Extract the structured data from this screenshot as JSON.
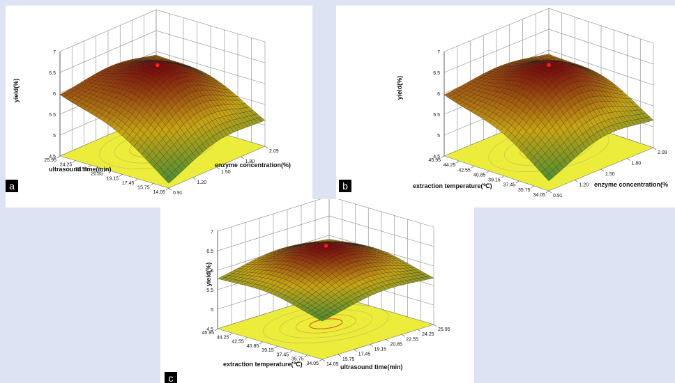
{
  "chart_data": [
    {
      "panel_label": "a",
      "type": "surface3d",
      "zlabel": "yield(%)",
      "zlim": [
        4.5,
        7
      ],
      "zticks": [
        "4.5",
        "5",
        "5.5",
        "6",
        "6.5",
        "7"
      ],
      "x": {
        "label": "enzyme concentration(%)",
        "ticks": [
          "0.91",
          "1.20",
          "1.50",
          "1.80",
          "2.09"
        ],
        "range": [
          0.91,
          2.09
        ]
      },
      "y": {
        "label": "ultrasound time(min)",
        "ticks": [
          "14.05",
          "15.75",
          "17.45",
          "19.15",
          "20.85",
          "22.55",
          "24.25",
          "25.95"
        ],
        "range": [
          14.05,
          25.95
        ]
      },
      "optimum": {
        "x": 1.55,
        "y": 21.0,
        "z": 6.45
      },
      "corners": {
        "x_min_y_min": 4.5,
        "x_max_y_min": 5.0,
        "x_min_y_max": 5.9,
        "x_max_y_max": 5.8
      },
      "colors": {
        "high": "#7a0a0a",
        "mid": "#c8a414",
        "low": "#3a8a3a",
        "floor": "#ecec3a",
        "optimum_marker": "#ff2020"
      }
    },
    {
      "panel_label": "b",
      "type": "surface3d",
      "zlabel": "yield(%)",
      "zlim": [
        4.5,
        7
      ],
      "zticks": [
        "4.5",
        "5",
        "5.5",
        "6",
        "6.5",
        "7"
      ],
      "x": {
        "label": "enzyme concentration(%",
        "ticks": [
          "0.91",
          "1.20",
          "1.50",
          "1.80",
          "2.09"
        ],
        "range": [
          0.91,
          2.09
        ]
      },
      "y": {
        "label": "extraction temperature(℃)",
        "ticks": [
          "34.05",
          "35.75",
          "37.45",
          "39.15",
          "40.85",
          "42.55",
          "44.25",
          "45.95"
        ],
        "range": [
          34.05,
          45.95
        ]
      },
      "optimum": {
        "x": 1.55,
        "y": 40.5,
        "z": 6.5
      },
      "corners": {
        "x_min_y_min": 4.6,
        "x_max_y_min": 5.0,
        "x_min_y_max": 5.9,
        "x_max_y_max": 5.8
      },
      "colors": {
        "high": "#7a0a0a",
        "mid": "#c8a414",
        "low": "#3a8a3a",
        "floor": "#ecec3a",
        "optimum_marker": "#ff2020"
      }
    },
    {
      "panel_label": "c",
      "type": "surface3d",
      "zlabel": "yield(%)",
      "zlim": [
        4.5,
        7
      ],
      "zticks": [
        "4.5",
        "5",
        "5.5",
        "6",
        "6.5",
        "7"
      ],
      "x": {
        "label": "ultrasound time(min)",
        "ticks": [
          "14.05",
          "15.75",
          "17.45",
          "19.15",
          "20.85",
          "22.55",
          "24.25",
          "25.95"
        ],
        "range": [
          14.05,
          25.95
        ]
      },
      "y": {
        "label": "extraction temperature(℃)",
        "ticks": [
          "34.05",
          "35.75",
          "37.45",
          "39.15",
          "40.85",
          "42.55",
          "44.25",
          "45.95"
        ],
        "range": [
          34.05,
          45.95
        ]
      },
      "optimum": {
        "x": 20.5,
        "y": 40.5,
        "z": 6.5
      },
      "corners": {
        "x_min_y_min": 5.4,
        "x_max_y_min": 5.6,
        "x_min_y_max": 5.7,
        "x_max_y_max": 5.8
      },
      "colors": {
        "high": "#7a0a0a",
        "mid": "#c8a414",
        "low": "#3a8a3a",
        "floor": "#ecec3a",
        "optimum_marker": "#ff2020"
      }
    }
  ]
}
